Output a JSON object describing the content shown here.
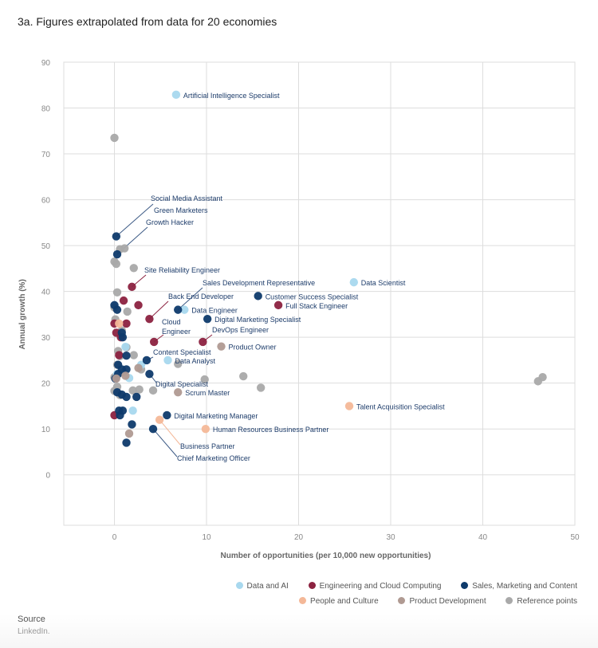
{
  "title": "3a. Figures extrapolated from data for 20 economies",
  "source": {
    "label": "Source",
    "text": "LinkedIn."
  },
  "colors": {
    "Data and AI": "#a8d8ee",
    "Engineering and Cloud Computing": "#8c2240",
    "Sales, Marketing and Content": "#0e3a6b",
    "People and Culture": "#f4b898",
    "Product Development": "#b09a92",
    "Reference points": "#a9a9a9",
    "label_text": "#1e3d6b",
    "grid": "#dddddd"
  },
  "legend": [
    {
      "label": "Data and AI",
      "color": "#a8d8ee"
    },
    {
      "label": "Engineering and Cloud Computing",
      "color": "#8c2240"
    },
    {
      "label": "Sales, Marketing and Content",
      "color": "#0e3a6b"
    },
    {
      "label": "People and Culture",
      "color": "#f4b898"
    },
    {
      "label": "Product Development",
      "color": "#b09a92"
    },
    {
      "label": "Reference points",
      "color": "#a9a9a9"
    }
  ],
  "chart_data": {
    "type": "scatter",
    "title": "3a. Figures extrapolated from data for 20 economies",
    "xlabel": "Number of opportunities (per 10,000 new opportunities)",
    "ylabel": "Annual growth (%)",
    "xlim": [
      -5.5,
      50
    ],
    "ylim": [
      -11,
      90
    ],
    "xticks": [
      0,
      10,
      20,
      30,
      40,
      50
    ],
    "yticks": [
      0,
      10,
      20,
      30,
      40,
      50,
      60,
      70,
      80,
      90
    ],
    "grid": true,
    "legend_position": "bottom-right",
    "series": [
      {
        "name": "Reference points",
        "points": [
          [
            0.0,
            73.5
          ],
          [
            0.6,
            49.2
          ],
          [
            1.1,
            49.4
          ],
          [
            0.0,
            46.5
          ],
          [
            0.2,
            46.0
          ],
          [
            2.1,
            45.1
          ],
          [
            0.0,
            36.5
          ],
          [
            0.3,
            39.8
          ],
          [
            1.4,
            35.6
          ],
          [
            0.1,
            33.9
          ],
          [
            0.8,
            31.5
          ],
          [
            0.4,
            27.0
          ],
          [
            1.3,
            27.8
          ],
          [
            0.6,
            25.9
          ],
          [
            2.1,
            26.1
          ],
          [
            2.9,
            23.0
          ],
          [
            6.9,
            24.2
          ],
          [
            0.3,
            24.0
          ],
          [
            1.0,
            22.4
          ],
          [
            0.0,
            21.3
          ],
          [
            0.3,
            19.2
          ],
          [
            0.0,
            18.3
          ],
          [
            0.6,
            17.4
          ],
          [
            2.0,
            18.4
          ],
          [
            2.7,
            18.6
          ],
          [
            4.2,
            18.4
          ],
          [
            9.8,
            20.8
          ],
          [
            14.0,
            21.5
          ],
          [
            15.9,
            19.0
          ],
          [
            46.0,
            20.4
          ],
          [
            46.5,
            21.3
          ]
        ]
      },
      {
        "name": "Data and AI",
        "points": [
          [
            6.7,
            82.9
          ],
          [
            26.0,
            42.0
          ],
          [
            7.6,
            36.0
          ],
          [
            5.8,
            25.0
          ],
          [
            2.9,
            24.0
          ],
          [
            1.2,
            27.9
          ],
          [
            1.6,
            21.1
          ],
          [
            2.0,
            14.0
          ],
          [
            0.3,
            22.0
          ]
        ]
      },
      {
        "name": "Engineering and Cloud Computing",
        "points": [
          [
            1.9,
            41.0
          ],
          [
            1.0,
            38.0
          ],
          [
            2.6,
            37.0
          ],
          [
            17.8,
            37.0
          ],
          [
            3.8,
            34.0
          ],
          [
            0.0,
            33.0
          ],
          [
            1.3,
            33.0
          ],
          [
            0.2,
            31.0
          ],
          [
            0.7,
            30.0
          ],
          [
            4.3,
            29.0
          ],
          [
            9.6,
            29.0
          ],
          [
            0.5,
            26.1
          ],
          [
            0.0,
            13.0
          ]
        ]
      },
      {
        "name": "Sales, Marketing and Content",
        "points": [
          [
            0.2,
            52.0
          ],
          [
            0.3,
            48.1
          ],
          [
            0.0,
            37.0
          ],
          [
            0.3,
            36.0
          ],
          [
            6.9,
            36.0
          ],
          [
            15.6,
            39.0
          ],
          [
            10.1,
            34.0
          ],
          [
            0.8,
            31.0
          ],
          [
            0.9,
            30.0
          ],
          [
            0.4,
            24.0
          ],
          [
            0.8,
            23.0
          ],
          [
            1.3,
            23.0
          ],
          [
            0.4,
            22.0
          ],
          [
            0.1,
            21.0
          ],
          [
            1.3,
            26.0
          ],
          [
            3.5,
            25.0
          ],
          [
            3.8,
            22.0
          ],
          [
            0.3,
            18.0
          ],
          [
            0.8,
            17.5
          ],
          [
            1.3,
            17.0
          ],
          [
            2.4,
            17.0
          ],
          [
            0.5,
            14.0
          ],
          [
            0.9,
            14.0
          ],
          [
            0.6,
            13.0
          ],
          [
            5.7,
            13.0
          ],
          [
            1.9,
            11.0
          ],
          [
            4.2,
            10.0
          ],
          [
            1.3,
            7.0
          ]
        ]
      },
      {
        "name": "People and Culture",
        "points": [
          [
            0.5,
            33.0
          ],
          [
            25.5,
            15.0
          ],
          [
            4.9,
            12.0
          ],
          [
            9.9,
            10.0
          ]
        ]
      },
      {
        "name": "Product Development",
        "points": [
          [
            11.6,
            28.0
          ],
          [
            6.9,
            18.0
          ],
          [
            0.2,
            21.0
          ],
          [
            1.2,
            21.6
          ],
          [
            2.6,
            23.3
          ],
          [
            1.6,
            9.0
          ]
        ]
      }
    ],
    "annotations": [
      {
        "text": "Artificial Intelligence Specialist",
        "point": [
          6.7,
          82.9
        ],
        "category": "Data and AI"
      },
      {
        "text": "Social Media Assistant",
        "point": [
          0.2,
          52.0
        ],
        "category": "Sales, Marketing and Content"
      },
      {
        "text": "Green Marketers",
        "point": null,
        "category": "Sales, Marketing and Content"
      },
      {
        "text": "Growth Hacker",
        "point": [
          0.3,
          48.1
        ],
        "category": "Sales, Marketing and Content"
      },
      {
        "text": "Site Reliability Engineer",
        "point": [
          1.9,
          41.0
        ],
        "category": "Engineering and Cloud Computing"
      },
      {
        "text": "Sales Development Representative",
        "point": [
          6.9,
          36.0
        ],
        "category": "Sales, Marketing and Content"
      },
      {
        "text": "Back End Developer",
        "point": [
          3.8,
          34.0
        ],
        "category": "Engineering and Cloud Computing"
      },
      {
        "text": "Data Engineer",
        "point": [
          7.6,
          36.0
        ],
        "category": "Data and AI"
      },
      {
        "text": "Cloud Engineer",
        "point": [
          4.3,
          29.0
        ],
        "category": "Engineering and Cloud Computing"
      },
      {
        "text": "Digital Marketing Specialist",
        "point": [
          10.1,
          34.0
        ],
        "category": "Sales, Marketing and Content"
      },
      {
        "text": "DevOps Engineer",
        "point": [
          9.6,
          29.0
        ],
        "category": "Engineering and Cloud Computing"
      },
      {
        "text": "Product Owner",
        "point": [
          11.6,
          28.0
        ],
        "category": "Product Development"
      },
      {
        "text": "Customer Success Specialist",
        "point": [
          15.6,
          39.0
        ],
        "category": "Sales, Marketing and Content"
      },
      {
        "text": "Full Stack Engineer",
        "point": [
          17.8,
          37.0
        ],
        "category": "Engineering and Cloud Computing"
      },
      {
        "text": "Data Scientist",
        "point": [
          26.0,
          42.0
        ],
        "category": "Data and AI"
      },
      {
        "text": "Content Specialist",
        "point": [
          3.5,
          25.0
        ],
        "category": "Sales, Marketing and Content"
      },
      {
        "text": "Data Analyst",
        "point": [
          5.8,
          25.0
        ],
        "category": "Data and AI"
      },
      {
        "text": "Digital Specialist",
        "point": [
          3.8,
          22.0
        ],
        "category": "Sales, Marketing and Content"
      },
      {
        "text": "Scrum Master",
        "point": [
          6.9,
          18.0
        ],
        "category": "Product Development"
      },
      {
        "text": "Talent Acquisition Specialist",
        "point": [
          25.5,
          15.0
        ],
        "category": "People and Culture"
      },
      {
        "text": "Digital Marketing Manager",
        "point": [
          5.7,
          13.0
        ],
        "category": "Sales, Marketing and Content"
      },
      {
        "text": "Human Resources Business Partner",
        "point": [
          9.9,
          10.0
        ],
        "category": "People and Culture"
      },
      {
        "text": "Business Partner",
        "point": [
          4.9,
          12.0
        ],
        "category": "People and Culture"
      },
      {
        "text": "Chief Marketing Officer",
        "point": [
          4.2,
          10.0
        ],
        "category": "Sales, Marketing and Content"
      }
    ]
  }
}
